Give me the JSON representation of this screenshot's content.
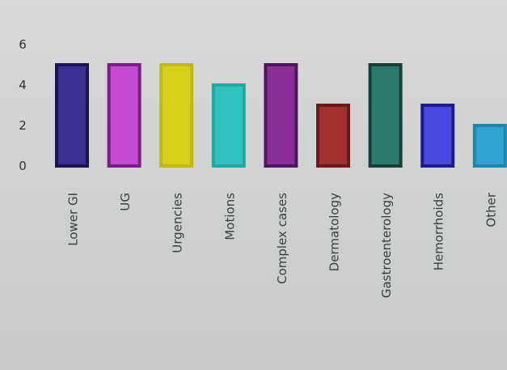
{
  "chart_data": {
    "type": "bar",
    "title": "",
    "xlabel": "",
    "ylabel": "",
    "ylim": [
      0,
      6
    ],
    "yticks": [
      0,
      2,
      4,
      6
    ],
    "grid": false,
    "categories": [
      "Lower GI",
      "UG",
      "Urgencies",
      "Motions",
      "Complex cases",
      "Dermatology",
      "Gastroenterology",
      "Hemorrhoids",
      "Other"
    ],
    "values": [
      5,
      5,
      5,
      4,
      5,
      3,
      5,
      3,
      2
    ],
    "colors": [
      "#3b2f92",
      "#c74ad2",
      "#d8cf1a",
      "#2fc2bf",
      "#8a2f95",
      "#a3312e",
      "#2a7a6d",
      "#4a48e0",
      "#2fa3cf"
    ],
    "edge_colors": [
      "#1a1550",
      "#7a1d88",
      "#c2b90e",
      "#22a7a5",
      "#4e1560",
      "#6b1c1a",
      "#153f37",
      "#1f1c8a",
      "#1d86ad"
    ]
  }
}
